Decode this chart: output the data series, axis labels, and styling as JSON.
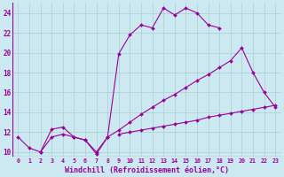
{
  "xlabel": "Windchill (Refroidissement éolien,°C)",
  "bg_color": "#cce8f0",
  "grid_color": "#aacfcc",
  "line_color": "#990099",
  "xlim": [
    -0.5,
    23.5
  ],
  "ylim": [
    9.5,
    25.0
  ],
  "xticks": [
    0,
    1,
    2,
    3,
    4,
    5,
    6,
    7,
    8,
    9,
    10,
    11,
    12,
    13,
    14,
    15,
    16,
    17,
    18,
    19,
    20,
    21,
    22,
    23
  ],
  "yticks": [
    10,
    12,
    14,
    16,
    18,
    20,
    22,
    24
  ],
  "series1_x": [
    0,
    1,
    2,
    3,
    4,
    5,
    6,
    7,
    8,
    9,
    10,
    11,
    12,
    13,
    14,
    15,
    16,
    17,
    18
  ],
  "series1_y": [
    11.5,
    10.4,
    10.0,
    12.3,
    12.5,
    11.5,
    11.2,
    9.8,
    11.5,
    19.9,
    21.8,
    22.8,
    22.5,
    24.5,
    23.8,
    24.5,
    24.0,
    22.8,
    22.5
  ],
  "series2_x": [
    2,
    3,
    4,
    5,
    6,
    7,
    8,
    9,
    10,
    11,
    12,
    13,
    14,
    15,
    16,
    17,
    18,
    19,
    20,
    21,
    22,
    23
  ],
  "series2_y": [
    10.0,
    11.5,
    11.8,
    11.5,
    11.2,
    10.0,
    11.5,
    12.2,
    13.0,
    13.8,
    14.5,
    15.2,
    15.8,
    16.5,
    17.2,
    17.8,
    18.5,
    19.2,
    20.5,
    18.0,
    16.0,
    14.5
  ],
  "series3_x": [
    9,
    10,
    11,
    12,
    13,
    14,
    15,
    16,
    17,
    18,
    19,
    20,
    21,
    22,
    23
  ],
  "series3_y": [
    11.8,
    12.0,
    12.2,
    12.4,
    12.6,
    12.8,
    13.0,
    13.2,
    13.5,
    13.7,
    13.9,
    14.1,
    14.3,
    14.5,
    14.7
  ]
}
